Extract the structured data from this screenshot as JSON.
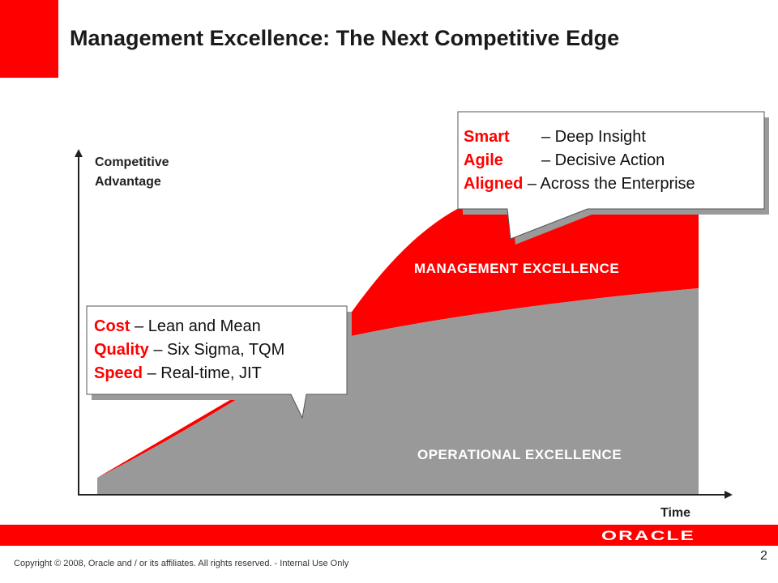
{
  "slide": {
    "title": "Management Excellence: The Next Competitive Edge",
    "page_number": "2",
    "copyright": "Copyright © 2008, Oracle and / or its affiliates. All rights reserved. - Internal Use Only",
    "logo_text": "ORACLE"
  },
  "diagram": {
    "y_axis_label_line1": "Competitive",
    "y_axis_label_line2": "Advantage",
    "x_axis_label": "Time",
    "upper_region_label": "MANAGEMENT EXCELLENCE",
    "lower_region_label": "OPERATIONAL EXCELLENCE",
    "colors": {
      "upper_region": "#ff0000",
      "lower_region": "#999999",
      "accent": "#ff0000"
    }
  },
  "callouts": {
    "management": [
      {
        "key": "Smart",
        "text": "– Deep Insight"
      },
      {
        "key": "Agile",
        "text": "– Decisive Action"
      },
      {
        "key": "Aligned",
        "text": "– Across the Enterprise"
      }
    ],
    "operational": [
      {
        "key": "Cost",
        "text": "– Lean and Mean"
      },
      {
        "key": "Quality",
        "text": "– Six Sigma, TQM"
      },
      {
        "key": "Speed",
        "text": "– Real-time, JIT"
      }
    ]
  }
}
